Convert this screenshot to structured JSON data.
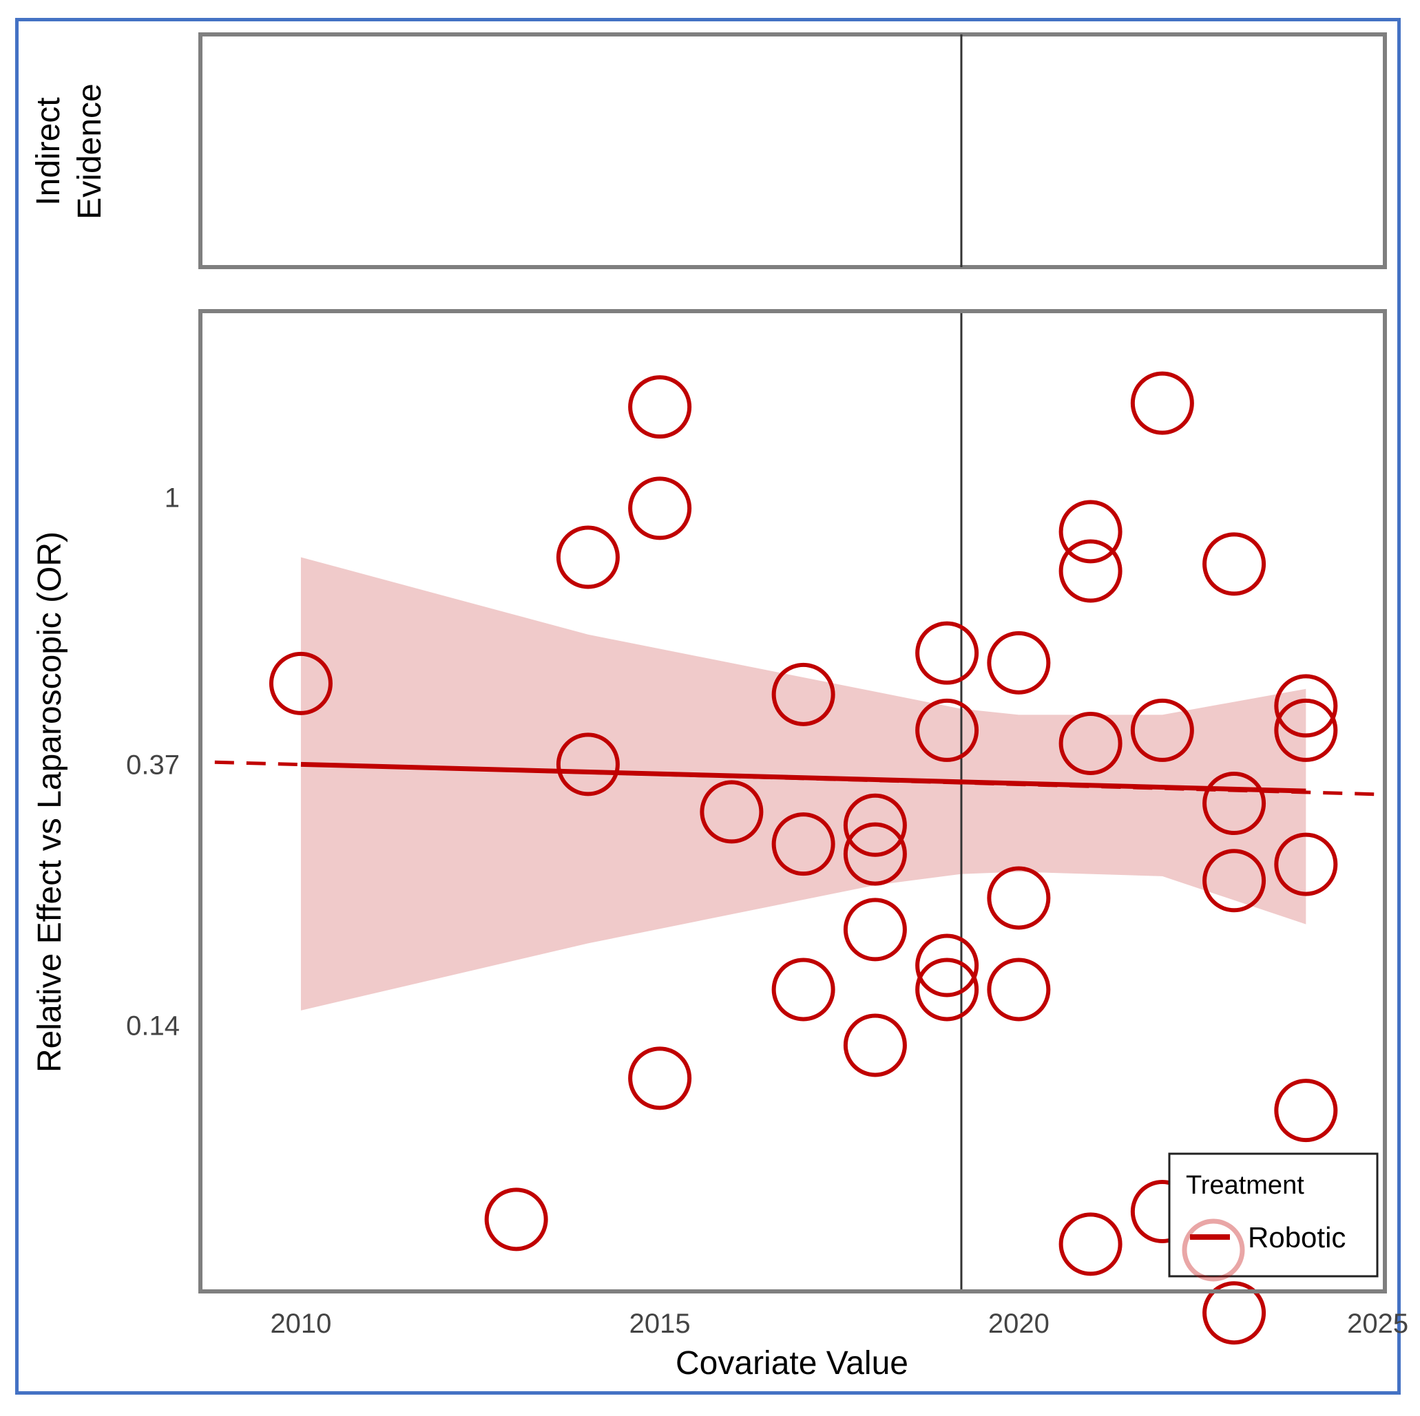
{
  "chart_data": {
    "type": "scatter",
    "title": "",
    "xlabel": "Covariate Value",
    "ylabel": "Relative Effect vs Laparoscopic (OR)",
    "top_panel_label_lines": [
      "Indirect",
      "Evidence"
    ],
    "x_ticks": [
      2010,
      2015,
      2020,
      2025
    ],
    "y_ticks": [
      {
        "label": "0.14",
        "value": 0.14
      },
      {
        "label": "0.37",
        "value": 0.37
      },
      {
        "label": "1",
        "value": 1
      }
    ],
    "y_scale": "log",
    "xlim": [
      2008.6,
      2025.1
    ],
    "ylim": [
      0.052,
      2.0
    ],
    "reference_x": 2019.2,
    "legend": {
      "title": "Treatment",
      "entries": [
        "Robotic"
      ],
      "position": "bottom-right"
    },
    "colors": {
      "series": "#c00000",
      "band": "#f0caca",
      "frame": "#7f7f7f",
      "border": "#4472c4"
    },
    "series": [
      {
        "name": "Robotic",
        "points": [
          {
            "x": 2010,
            "y": 0.5
          },
          {
            "x": 2013,
            "y": 0.068
          },
          {
            "x": 2014,
            "y": 0.8
          },
          {
            "x": 2014,
            "y": 0.37
          },
          {
            "x": 2015,
            "y": 1.4
          },
          {
            "x": 2015,
            "y": 0.96
          },
          {
            "x": 2015,
            "y": 0.115
          },
          {
            "x": 2016,
            "y": 0.31
          },
          {
            "x": 2017,
            "y": 0.48
          },
          {
            "x": 2017,
            "y": 0.275
          },
          {
            "x": 2017,
            "y": 0.16
          },
          {
            "x": 2018,
            "y": 0.295
          },
          {
            "x": 2018,
            "y": 0.265
          },
          {
            "x": 2018,
            "y": 0.2
          },
          {
            "x": 2018,
            "y": 0.13
          },
          {
            "x": 2019,
            "y": 0.56
          },
          {
            "x": 2019,
            "y": 0.42
          },
          {
            "x": 2019,
            "y": 0.175
          },
          {
            "x": 2019,
            "y": 0.16
          },
          {
            "x": 2020,
            "y": 0.54
          },
          {
            "x": 2020,
            "y": 0.225
          },
          {
            "x": 2020,
            "y": 0.16
          },
          {
            "x": 2021,
            "y": 0.88
          },
          {
            "x": 2021,
            "y": 0.76
          },
          {
            "x": 2021,
            "y": 0.4
          },
          {
            "x": 2021,
            "y": 0.062
          },
          {
            "x": 2022,
            "y": 1.42
          },
          {
            "x": 2022,
            "y": 0.42
          },
          {
            "x": 2022,
            "y": 0.07
          },
          {
            "x": 2023,
            "y": 0.78
          },
          {
            "x": 2023,
            "y": 0.32
          },
          {
            "x": 2023,
            "y": 0.24
          },
          {
            "x": 2023,
            "y": 0.048
          },
          {
            "x": 2024,
            "y": 0.46
          },
          {
            "x": 2024,
            "y": 0.42
          },
          {
            "x": 2024,
            "y": 0.255
          },
          {
            "x": 2024,
            "y": 0.102
          }
        ],
        "fit": {
          "x": [
            2010,
            2024
          ],
          "y": [
            0.37,
            0.335
          ]
        },
        "fit_extension": {
          "x": [
            2008.8,
            2025.0
          ],
          "y": [
            0.373,
            0.331
          ]
        },
        "ci_band": [
          {
            "x": 2010,
            "lo": 0.148,
            "hi": 0.8
          },
          {
            "x": 2014,
            "lo": 0.19,
            "hi": 0.6
          },
          {
            "x": 2018,
            "lo": 0.236,
            "hi": 0.485
          },
          {
            "x": 2019.2,
            "lo": 0.246,
            "hi": 0.455
          },
          {
            "x": 2020,
            "lo": 0.248,
            "hi": 0.445
          },
          {
            "x": 2022,
            "lo": 0.244,
            "hi": 0.445
          },
          {
            "x": 2024,
            "lo": 0.204,
            "hi": 0.49
          }
        ]
      }
    ]
  }
}
